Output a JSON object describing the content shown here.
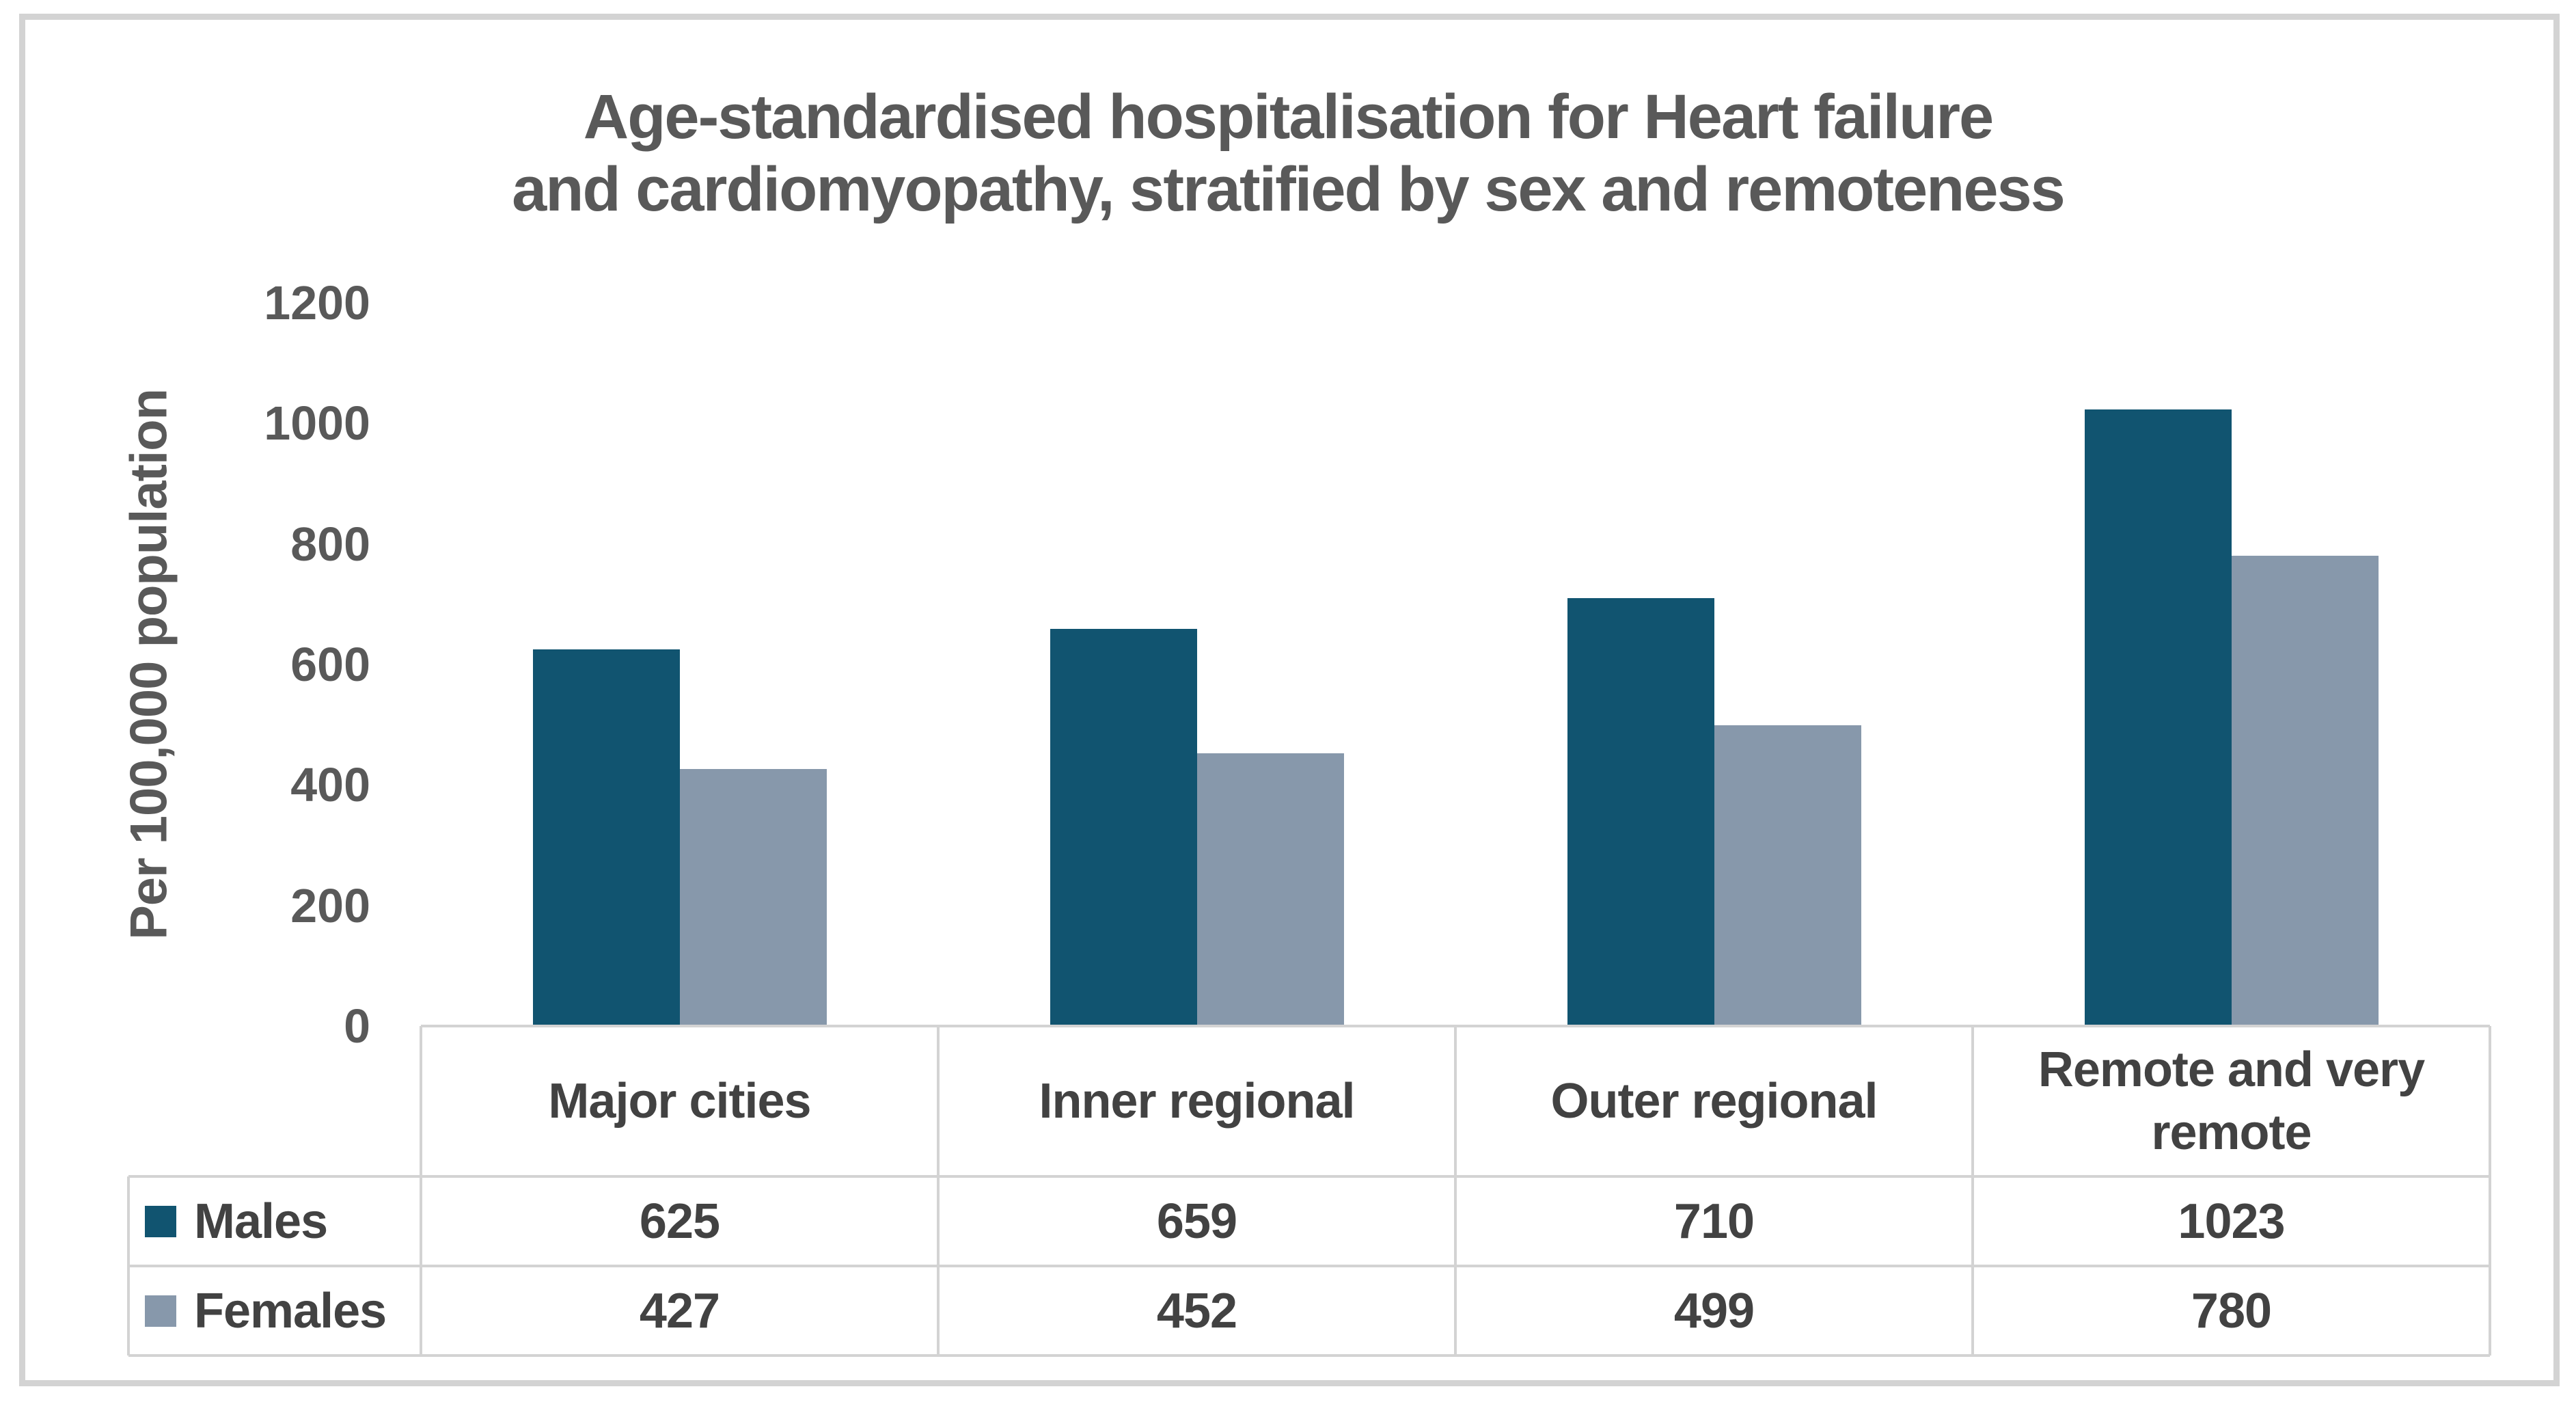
{
  "chart_data": {
    "type": "bar",
    "title": "Age-standardised hospitalisation for Heart failure and cardiomyopathy, stratified by sex and remoteness",
    "title_lines": [
      "Age-standardised hospitalisation for Heart failure",
      "and cardiomyopathy, stratified by sex and remoteness"
    ],
    "ylabel": "Per 100,000 population",
    "xlabel": "",
    "categories": [
      "Major cities",
      "Inner regional",
      "Outer regional",
      "Remote and very remote"
    ],
    "series": [
      {
        "name": "Males",
        "color": "#115470",
        "values": [
          625,
          659,
          710,
          1023
        ]
      },
      {
        "name": "Females",
        "color": "#8798AB",
        "values": [
          427,
          452,
          499,
          780
        ]
      }
    ],
    "ylim": [
      0,
      1200
    ],
    "yticks": [
      0,
      200,
      400,
      600,
      800,
      1000,
      1200
    ],
    "grid": false,
    "legend_position": "data-table-left"
  },
  "colors": {
    "title_text": "#595959",
    "axis_text": "#595959",
    "table_text": "#424242",
    "table_lines": "#d3d3d3",
    "frame_border": "#d3d3d3",
    "background": "#ffffff"
  }
}
